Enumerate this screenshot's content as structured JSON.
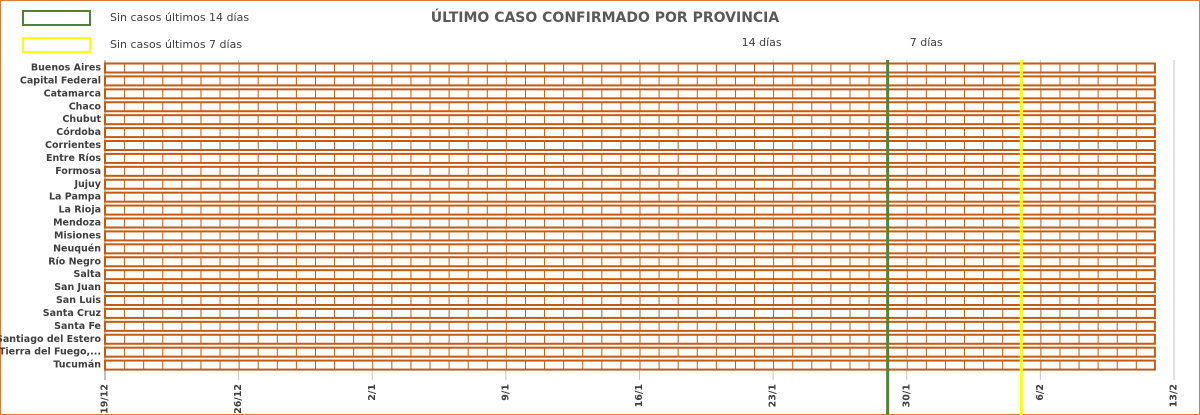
{
  "chart_data": {
    "type": "bar",
    "orientation": "horizontal",
    "title": "ÚLTIMO CASO CONFIRMADO POR PROVINCIA",
    "legend": [
      {
        "name": "Sin casos últimos 14 días",
        "color": "#548235"
      },
      {
        "name": "Sin casos últimos 7 días",
        "color": "#ffff00"
      }
    ],
    "categories": [
      "Buenos Aires",
      "Capital Federal",
      "Catamarca",
      "Chaco",
      "Chubut",
      "Córdoba",
      "Corrientes",
      "Entre Ríos",
      "Formosa",
      "Jujuy",
      "La Pampa",
      "La Rioja",
      "Mendoza",
      "Misiones",
      "Neuquén",
      "Río Negro",
      "Salta",
      "San Juan",
      "San Luis",
      "Santa Cruz",
      "Santa Fe",
      "Santiago del Estero",
      "Tierra del Fuego,...",
      "Tucumán"
    ],
    "values": [
      55,
      55,
      55,
      55,
      55,
      55,
      55,
      55,
      55,
      55,
      55,
      55,
      55,
      55,
      55,
      55,
      55,
      55,
      55,
      55,
      55,
      55,
      55,
      55
    ],
    "color": "#c55a11",
    "xlim": [
      0,
      56
    ],
    "xticks": [
      {
        "value": 0,
        "label": "19/12"
      },
      {
        "value": 7,
        "label": "26/12"
      },
      {
        "value": 14,
        "label": "2/1"
      },
      {
        "value": 21,
        "label": "9/1"
      },
      {
        "value": 28,
        "label": "16/1"
      },
      {
        "value": 35,
        "label": "23/1"
      },
      {
        "value": 42,
        "label": "30/1"
      },
      {
        "value": 49,
        "label": "6/2"
      },
      {
        "value": 56,
        "label": "13/2"
      }
    ],
    "reference_lines": [
      {
        "label": "14 días",
        "value": 41,
        "color": "#548235"
      },
      {
        "label": "7 días",
        "value": 48,
        "color": "#ffff00"
      }
    ],
    "grid": true
  }
}
